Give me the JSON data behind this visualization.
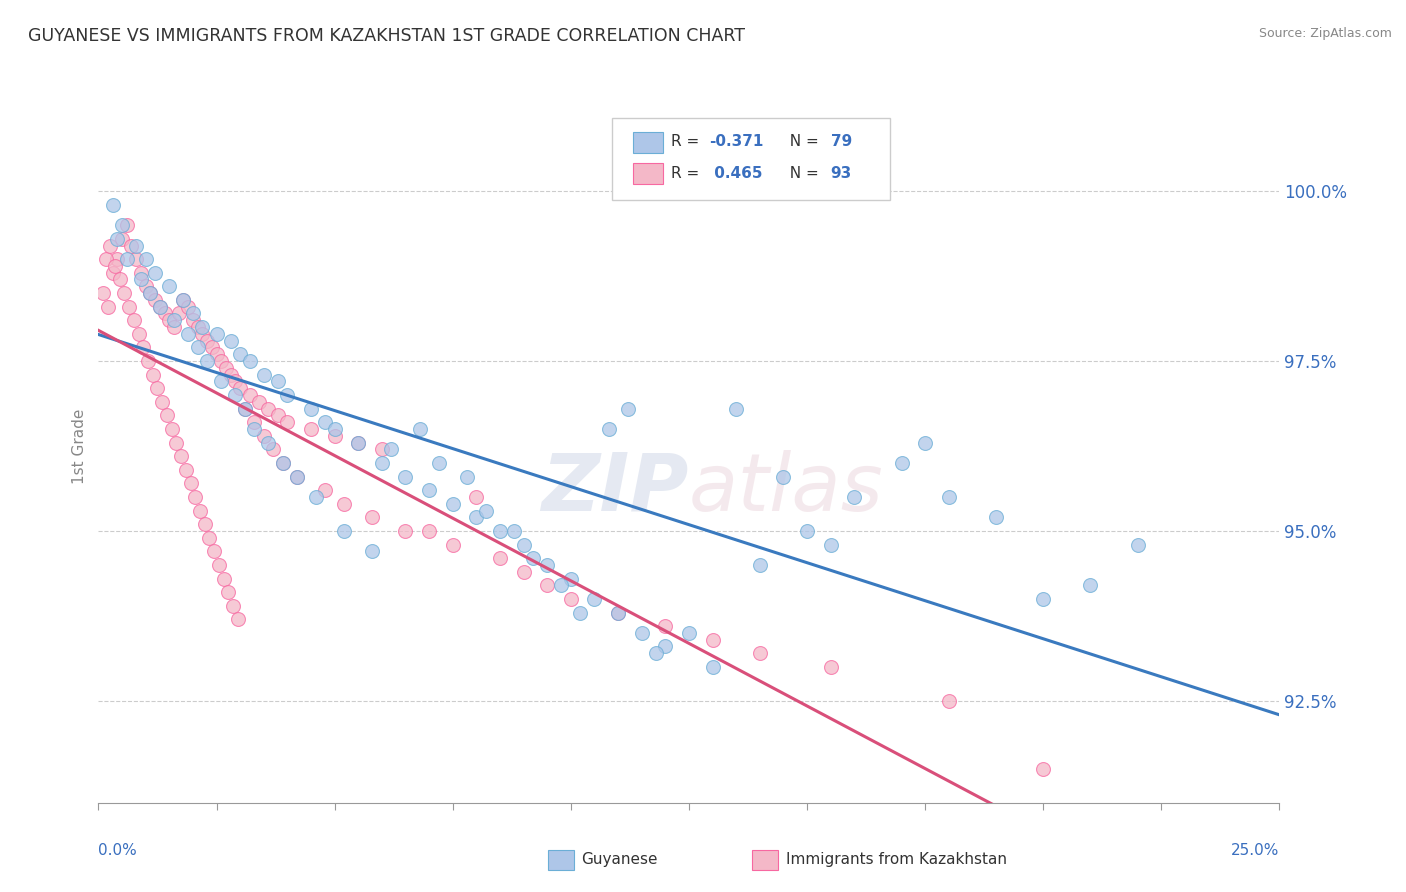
{
  "title": "GUYANESE VS IMMIGRANTS FROM KAZAKHSTAN 1ST GRADE CORRELATION CHART",
  "source": "Source: ZipAtlas.com",
  "ylabel": "1st Grade",
  "xlim": [
    0.0,
    25.0
  ],
  "ylim": [
    91.0,
    101.5
  ],
  "yticks": [
    92.5,
    95.0,
    97.5,
    100.0
  ],
  "ytick_labels": [
    "92.5%",
    "95.0%",
    "97.5%",
    "100.0%"
  ],
  "blue_color": "#aec6e8",
  "pink_color": "#f4b8c8",
  "blue_edge": "#6baed6",
  "pink_edge": "#f768a1",
  "trend_blue": "#3a7abf",
  "trend_pink": "#d94f7a",
  "watermark_zip": "ZIP",
  "watermark_atlas": "atlas",
  "blue_scatter_x": [
    0.3,
    0.5,
    0.8,
    1.0,
    1.2,
    1.5,
    1.8,
    2.0,
    2.2,
    2.5,
    2.8,
    3.0,
    3.2,
    3.5,
    3.8,
    4.0,
    4.5,
    4.8,
    5.0,
    5.5,
    6.0,
    6.5,
    7.0,
    7.5,
    8.0,
    8.5,
    9.0,
    9.5,
    10.0,
    10.5,
    11.0,
    11.5,
    12.0,
    13.0,
    14.0,
    15.0,
    16.0,
    17.0,
    18.0,
    20.0,
    22.0,
    0.4,
    0.6,
    0.9,
    1.1,
    1.3,
    1.6,
    1.9,
    2.1,
    2.3,
    2.6,
    2.9,
    3.1,
    3.3,
    3.6,
    3.9,
    4.2,
    4.6,
    5.2,
    5.8,
    6.2,
    6.8,
    7.2,
    7.8,
    8.2,
    8.8,
    9.2,
    9.8,
    10.2,
    10.8,
    11.2,
    11.8,
    12.5,
    13.5,
    14.5,
    15.5,
    17.5,
    19.0,
    21.0
  ],
  "blue_scatter_y": [
    99.8,
    99.5,
    99.2,
    99.0,
    98.8,
    98.6,
    98.4,
    98.2,
    98.0,
    97.9,
    97.8,
    97.6,
    97.5,
    97.3,
    97.2,
    97.0,
    96.8,
    96.6,
    96.5,
    96.3,
    96.0,
    95.8,
    95.6,
    95.4,
    95.2,
    95.0,
    94.8,
    94.5,
    94.3,
    94.0,
    93.8,
    93.5,
    93.3,
    93.0,
    94.5,
    95.0,
    95.5,
    96.0,
    95.5,
    94.0,
    94.8,
    99.3,
    99.0,
    98.7,
    98.5,
    98.3,
    98.1,
    97.9,
    97.7,
    97.5,
    97.2,
    97.0,
    96.8,
    96.5,
    96.3,
    96.0,
    95.8,
    95.5,
    95.0,
    94.7,
    96.2,
    96.5,
    96.0,
    95.8,
    95.3,
    95.0,
    94.6,
    94.2,
    93.8,
    96.5,
    96.8,
    93.2,
    93.5,
    96.8,
    95.8,
    94.8,
    96.3,
    95.2,
    94.2
  ],
  "pink_scatter_x": [
    0.1,
    0.2,
    0.3,
    0.4,
    0.5,
    0.6,
    0.7,
    0.8,
    0.9,
    1.0,
    1.1,
    1.2,
    1.3,
    1.4,
    1.5,
    1.6,
    1.7,
    1.8,
    1.9,
    2.0,
    2.1,
    2.2,
    2.3,
    2.4,
    2.5,
    2.6,
    2.7,
    2.8,
    2.9,
    3.0,
    3.2,
    3.4,
    3.6,
    3.8,
    4.0,
    4.5,
    5.0,
    5.5,
    6.0,
    7.0,
    8.0,
    0.15,
    0.25,
    0.35,
    0.45,
    0.55,
    0.65,
    0.75,
    0.85,
    0.95,
    1.05,
    1.15,
    1.25,
    1.35,
    1.45,
    1.55,
    1.65,
    1.75,
    1.85,
    1.95,
    2.05,
    2.15,
    2.25,
    2.35,
    2.45,
    2.55,
    2.65,
    2.75,
    2.85,
    2.95,
    3.1,
    3.3,
    3.5,
    3.7,
    3.9,
    4.2,
    4.8,
    5.2,
    5.8,
    6.5,
    7.5,
    8.5,
    9.0,
    9.5,
    10.0,
    11.0,
    12.0,
    13.0,
    14.0,
    15.5,
    18.0,
    20.0
  ],
  "pink_scatter_y": [
    98.5,
    98.3,
    98.8,
    99.0,
    99.3,
    99.5,
    99.2,
    99.0,
    98.8,
    98.6,
    98.5,
    98.4,
    98.3,
    98.2,
    98.1,
    98.0,
    98.2,
    98.4,
    98.3,
    98.1,
    98.0,
    97.9,
    97.8,
    97.7,
    97.6,
    97.5,
    97.4,
    97.3,
    97.2,
    97.1,
    97.0,
    96.9,
    96.8,
    96.7,
    96.6,
    96.5,
    96.4,
    96.3,
    96.2,
    95.0,
    95.5,
    99.0,
    99.2,
    98.9,
    98.7,
    98.5,
    98.3,
    98.1,
    97.9,
    97.7,
    97.5,
    97.3,
    97.1,
    96.9,
    96.7,
    96.5,
    96.3,
    96.1,
    95.9,
    95.7,
    95.5,
    95.3,
    95.1,
    94.9,
    94.7,
    94.5,
    94.3,
    94.1,
    93.9,
    93.7,
    96.8,
    96.6,
    96.4,
    96.2,
    96.0,
    95.8,
    95.6,
    95.4,
    95.2,
    95.0,
    94.8,
    94.6,
    94.4,
    94.2,
    94.0,
    93.8,
    93.6,
    93.4,
    93.2,
    93.0,
    92.5,
    91.5
  ]
}
